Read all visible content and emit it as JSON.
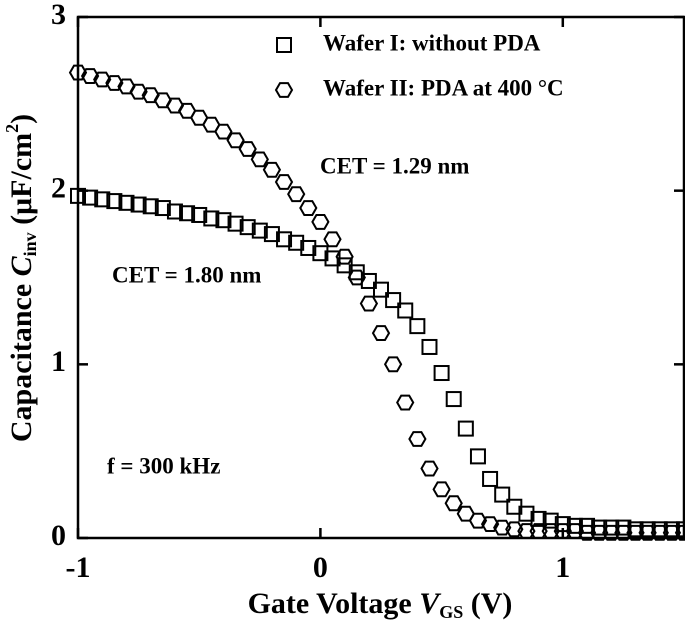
{
  "chart_data": {
    "type": "scatter",
    "xlabel": [
      "Gate Voltage ",
      "V",
      "GS",
      " (V)"
    ],
    "ylabel": [
      "Capacitance ",
      "C",
      "inv",
      " (μF/cm",
      "2",
      ")"
    ],
    "annotations": [
      "CET = 1.29 nm",
      "CET = 1.80 nm",
      "f = 300 kHz"
    ],
    "xlim": [
      -1,
      1.5
    ],
    "ylim": [
      0,
      3
    ],
    "xticks": [
      -1,
      0,
      1
    ],
    "yticks": [
      0,
      1,
      2,
      3
    ],
    "x": [
      -1,
      -0.95,
      -0.9,
      -0.85,
      -0.8,
      -0.75,
      -0.7,
      -0.65,
      -0.6,
      -0.55,
      -0.5,
      -0.45,
      -0.4,
      -0.35,
      -0.3,
      -0.25,
      -0.2,
      -0.15,
      -0.1,
      -0.05,
      0,
      0.05,
      0.1,
      0.15,
      0.2,
      0.25,
      0.3,
      0.35,
      0.4,
      0.45,
      0.5,
      0.55,
      0.6,
      0.65,
      0.7,
      0.75,
      0.8,
      0.85,
      0.9,
      0.95,
      1,
      1.05,
      1.1,
      1.15,
      1.2,
      1.25,
      1.3,
      1.35,
      1.4,
      1.45,
      1.5
    ],
    "series": [
      {
        "name": "Wafer I: without PDA",
        "marker": "square",
        "color": "#000000",
        "values": [
          1.97,
          1.96,
          1.95,
          1.94,
          1.93,
          1.92,
          1.91,
          1.9,
          1.88,
          1.87,
          1.86,
          1.84,
          1.83,
          1.81,
          1.79,
          1.77,
          1.75,
          1.72,
          1.7,
          1.67,
          1.64,
          1.61,
          1.57,
          1.53,
          1.48,
          1.43,
          1.37,
          1.31,
          1.22,
          1.1,
          0.95,
          0.8,
          0.63,
          0.47,
          0.34,
          0.25,
          0.18,
          0.14,
          0.11,
          0.1,
          0.08,
          0.07,
          0.07,
          0.06,
          0.06,
          0.06,
          0.05,
          0.05,
          0.05,
          0.05,
          0.05
        ]
      },
      {
        "name": "Wafer II: PDA at 400 °C",
        "marker": "hexagon",
        "color": "#000000",
        "values": [
          2.68,
          2.66,
          2.64,
          2.62,
          2.6,
          2.57,
          2.55,
          2.52,
          2.49,
          2.46,
          2.42,
          2.38,
          2.34,
          2.29,
          2.24,
          2.18,
          2.12,
          2.05,
          1.98,
          1.9,
          1.82,
          1.72,
          1.62,
          1.5,
          1.35,
          1.18,
          1,
          0.78,
          0.57,
          0.4,
          0.28,
          0.2,
          0.14,
          0.1,
          0.08,
          0.06,
          0.05,
          0.04,
          0.04,
          0.04,
          0.04,
          0.04,
          0.03,
          0.03,
          0.03,
          0.03,
          0.03,
          0.03,
          0.03,
          0.03,
          0.03
        ]
      }
    ]
  }
}
